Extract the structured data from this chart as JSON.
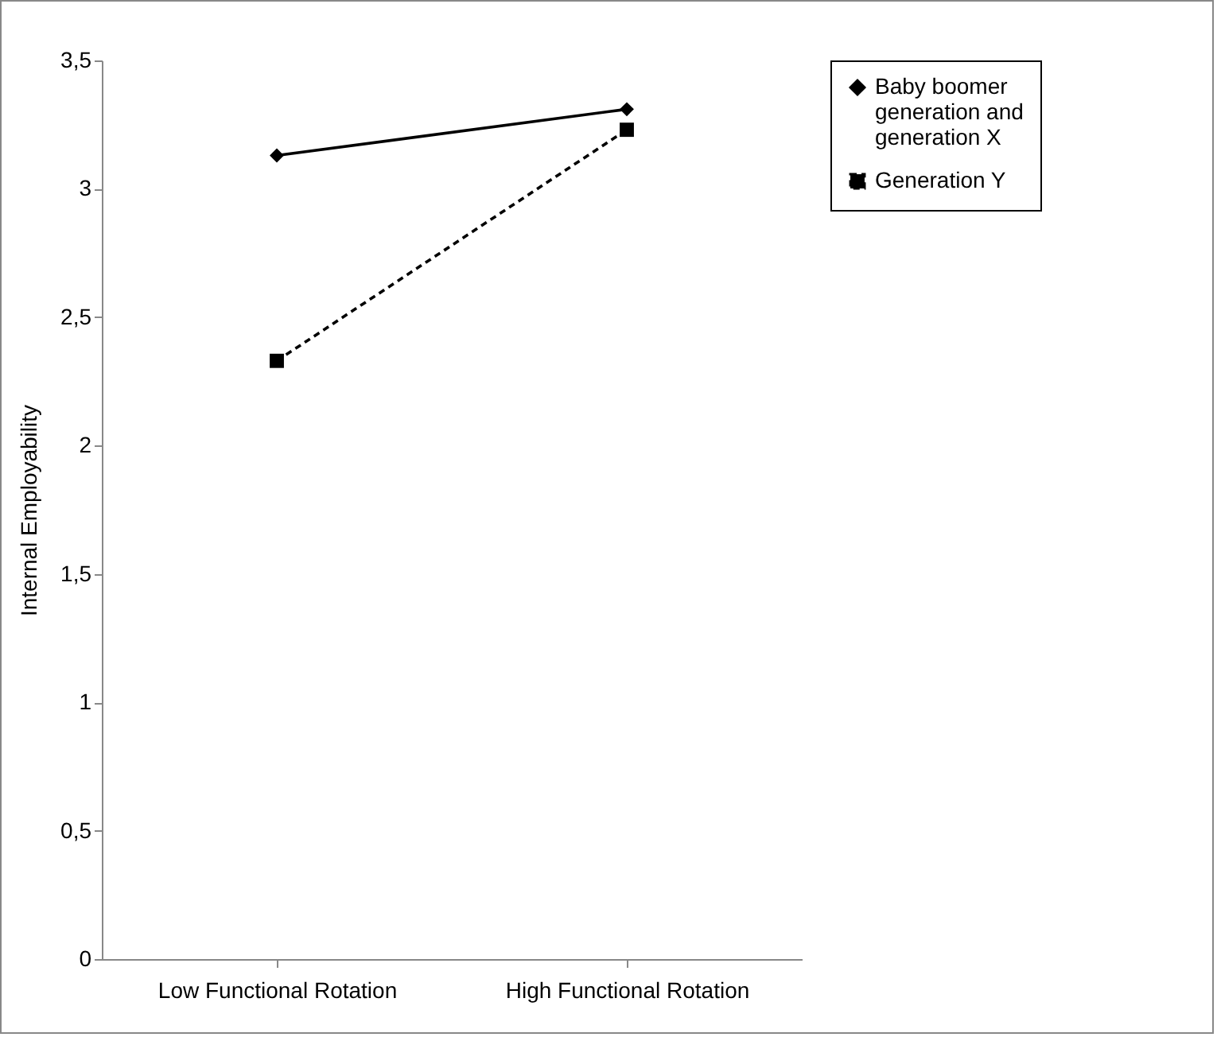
{
  "chart_data": {
    "type": "line",
    "ylabel": "Internal Employability",
    "categories": [
      "Low Functional Rotation",
      "High Functional Rotation"
    ],
    "series": [
      {
        "name": "Baby boomer generation and generation X",
        "color": "#000000",
        "values": [
          3.13,
          3.31
        ],
        "marker": "diamond",
        "line_style": "solid"
      },
      {
        "name": "Generation Y",
        "color": "#000000",
        "values": [
          2.33,
          3.23
        ],
        "marker": "square",
        "line_style": "dashed"
      }
    ],
    "ylim": [
      0,
      3.5
    ],
    "yticks": [
      {
        "value": 0,
        "label": "0"
      },
      {
        "value": 0.5,
        "label": "0,5"
      },
      {
        "value": 1,
        "label": "1"
      },
      {
        "value": 1.5,
        "label": "1,5"
      },
      {
        "value": 2,
        "label": "2"
      },
      {
        "value": 2.5,
        "label": "2,5"
      },
      {
        "value": 3,
        "label": "3"
      },
      {
        "value": 3.5,
        "label": "3,5"
      }
    ],
    "grid": false,
    "legend": "right"
  }
}
